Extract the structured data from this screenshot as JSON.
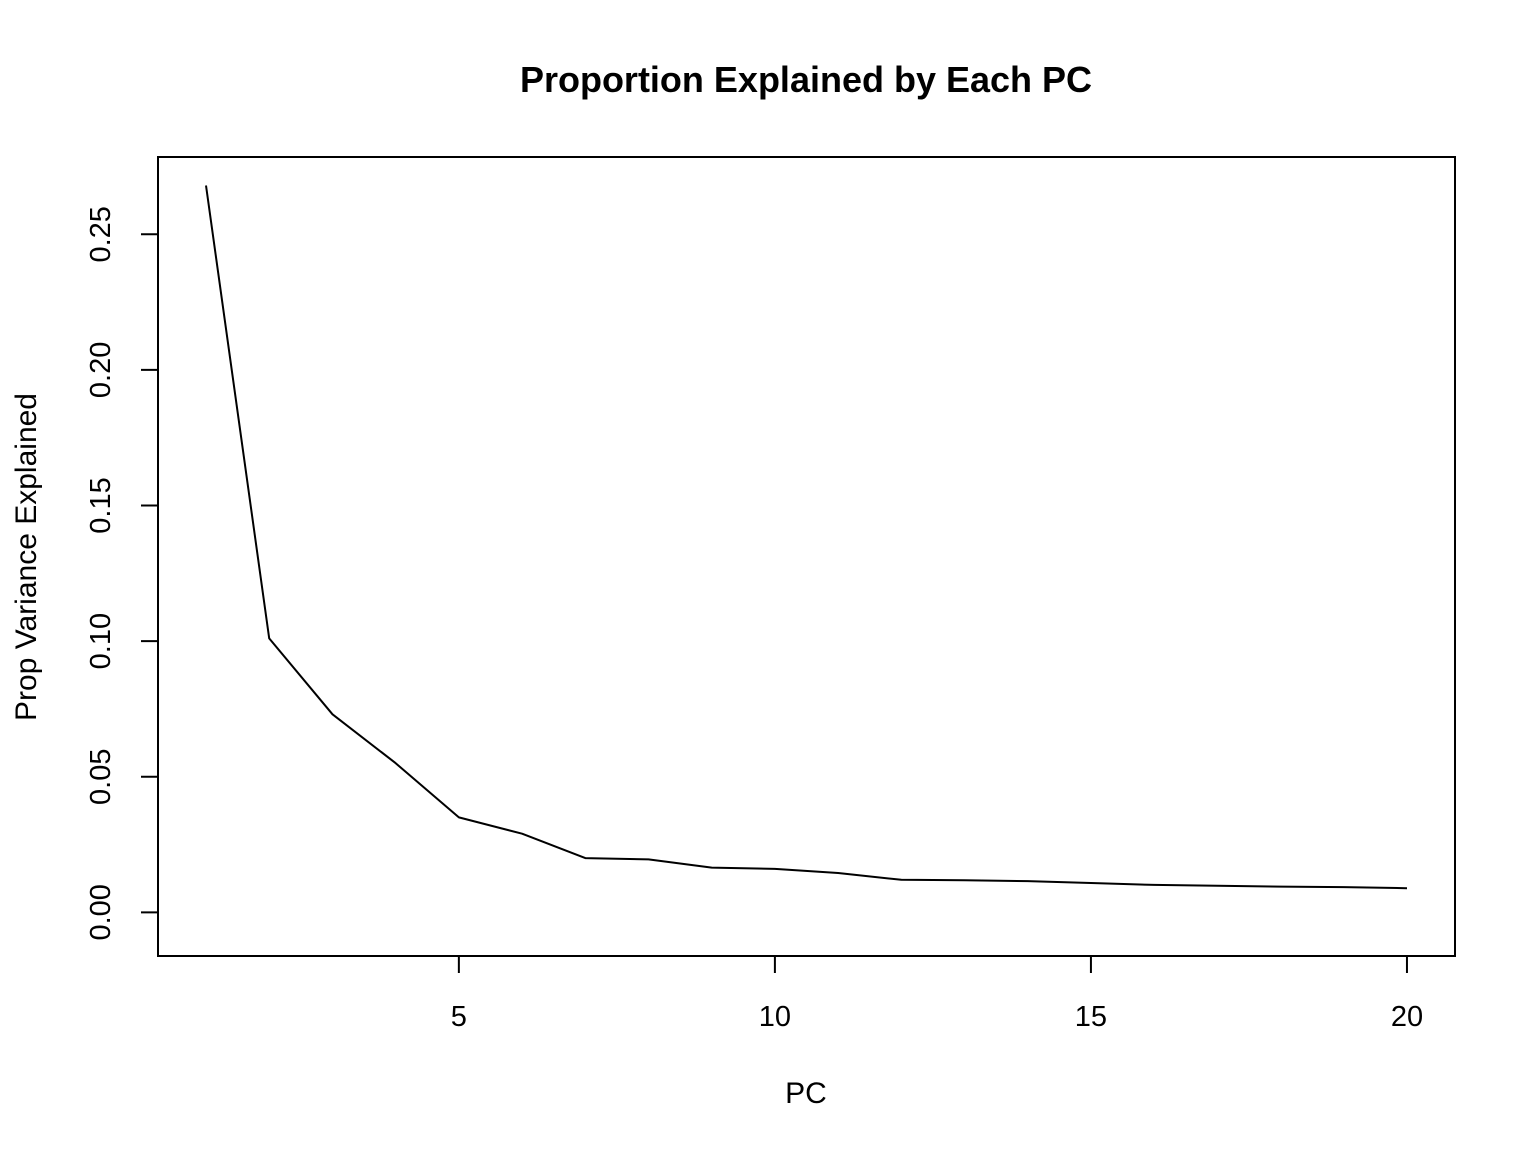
{
  "chart_data": {
    "type": "line",
    "title": "Proportion Explained by Each PC",
    "xlabel": "PC",
    "ylabel": "Prop Variance Explained",
    "x": [
      1,
      2,
      3,
      4,
      5,
      6,
      7,
      8,
      9,
      10,
      11,
      12,
      13,
      14,
      15,
      16,
      17,
      18,
      19,
      20
    ],
    "series": [
      {
        "values": [
          0.268,
          0.101,
          0.073,
          0.055,
          0.035,
          0.029,
          0.02,
          0.0195,
          0.0165,
          0.016,
          0.0145,
          0.012,
          0.0118,
          0.0115,
          0.0108,
          0.0101,
          0.0098,
          0.0095,
          0.0093,
          0.0089
        ]
      }
    ],
    "xticks": [
      5,
      10,
      15,
      20
    ],
    "xtick_labels": [
      "5",
      "10",
      "15",
      "20"
    ],
    "yticks": [
      0,
      0.05,
      0.1,
      0.15,
      0.2,
      0.25
    ],
    "ytick_labels": [
      "0.00",
      "0.05",
      "0.10",
      "0.15",
      "0.20",
      "0.25"
    ],
    "xlim": [
      0.24,
      20.76
    ],
    "ylim": [
      -0.0161,
      0.2785
    ],
    "grid": false,
    "line_color": "#000000"
  }
}
